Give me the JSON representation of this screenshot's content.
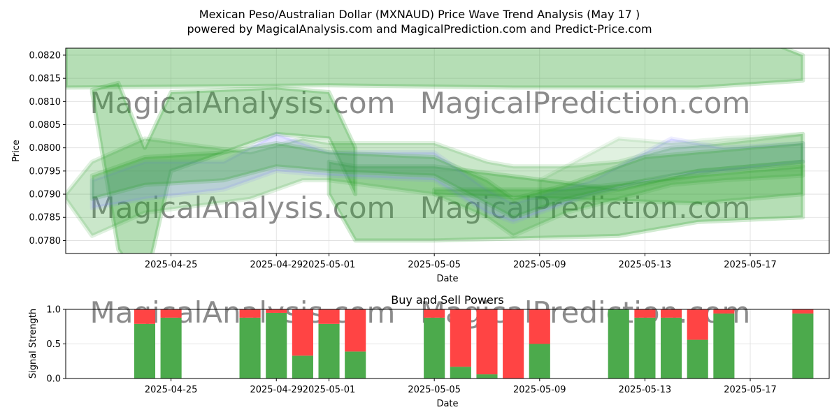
{
  "title_line1": "Mexican Peso/Australian Dollar (MXNAUD) Price Wave Trend Analysis (May 17 )",
  "title_line2": "powered by MagicalAnalysis.com and MagicalPrediction.com and Predict-Price.com",
  "watermarks": [
    "MagicalAnalysis.com",
    "MagicalPrediction.com"
  ],
  "colors": {
    "band": "#2ca02c",
    "band_alt": "#8080ff",
    "buy": "#4caa4c",
    "sell": "#ff4444",
    "grid": "#dddddd"
  },
  "chart_data": [
    {
      "type": "area",
      "title": "",
      "xlabel": "Date",
      "ylabel": "Price",
      "x_ticks": [
        "2025-04-25",
        "2025-04-29",
        "2025-05-01",
        "2025-05-05",
        "2025-05-09",
        "2025-05-13",
        "2025-05-17"
      ],
      "y_ticks": [
        "0.0780",
        "0.0785",
        "0.0790",
        "0.0795",
        "0.0800",
        "0.0805",
        "0.0810",
        "0.0815",
        "0.0820"
      ],
      "xlim": [
        "2025-04-21",
        "2025-05-20"
      ],
      "ylim": [
        0.07772,
        0.08215
      ],
      "grid": true,
      "bands": [
        {
          "x": [
            "2025-04-21",
            "2025-05-01",
            "2025-05-08",
            "2025-05-15",
            "2025-05-19"
          ],
          "lower": [
            0.0813,
            0.08135,
            0.0813,
            0.0813,
            0.08145
          ],
          "upper": [
            0.0829,
            0.0829,
            0.0829,
            0.0829,
            0.082
          ],
          "alpha": 0.35,
          "color": "band"
        },
        {
          "x": [
            "2025-04-22",
            "2025-04-23",
            "2025-04-24",
            "2025-04-25",
            "2025-04-29",
            "2025-05-01",
            "2025-05-02"
          ],
          "lower": [
            0.0812,
            0.0778,
            0.077,
            0.0795,
            0.0803,
            0.0802,
            0.079
          ],
          "upper": [
            0.08125,
            0.0814,
            0.08,
            0.0812,
            0.0813,
            0.0812,
            0.08
          ],
          "alpha": 0.35,
          "color": "band"
        },
        {
          "x": [
            "2025-05-01",
            "2025-05-02",
            "2025-05-05",
            "2025-05-12",
            "2025-05-15",
            "2025-05-19"
          ],
          "lower": [
            0.079,
            0.078,
            0.078,
            0.0781,
            0.0784,
            0.0785
          ],
          "upper": [
            0.0797,
            0.0796,
            0.0796,
            0.0791,
            0.0795,
            0.0797
          ],
          "alpha": 0.35,
          "color": "band"
        },
        {
          "x": [
            "2025-04-21",
            "2025-04-22",
            "2025-04-24",
            "2025-04-28",
            "2025-04-30",
            "2025-05-01",
            "2025-05-05",
            "2025-05-07",
            "2025-05-08",
            "2025-05-10",
            "2025-05-12",
            "2025-05-14",
            "2025-05-16",
            "2025-05-19"
          ],
          "lower": [
            0.0789,
            0.0781,
            0.0786,
            0.0789,
            0.0793,
            0.0793,
            0.079,
            0.0785,
            0.0781,
            0.0786,
            0.0789,
            0.0792,
            0.0793,
            0.0794
          ],
          "upper": [
            0.079,
            0.0797,
            0.0802,
            0.0799,
            0.0802,
            0.0801,
            0.0801,
            0.0797,
            0.0796,
            0.0796,
            0.0797,
            0.08,
            0.0801,
            0.0803
          ],
          "alpha": 0.25,
          "color": "band"
        },
        {
          "x": [
            "2025-04-22",
            "2025-04-24",
            "2025-04-27",
            "2025-04-29",
            "2025-05-01",
            "2025-05-05",
            "2025-05-07",
            "2025-05-08",
            "2025-05-11",
            "2025-05-14",
            "2025-05-16",
            "2025-05-19"
          ],
          "lower": [
            0.0787,
            0.0789,
            0.0791,
            0.0795,
            0.0794,
            0.0793,
            0.0786,
            0.0784,
            0.079,
            0.0794,
            0.0795,
            0.0797
          ],
          "upper": [
            0.0793,
            0.0797,
            0.0797,
            0.0803,
            0.0799,
            0.0799,
            0.0791,
            0.0788,
            0.0793,
            0.0802,
            0.08,
            0.0801
          ],
          "alpha": 0.22,
          "color": "band_alt"
        },
        {
          "x": [
            "2025-04-22",
            "2025-04-24",
            "2025-04-27",
            "2025-04-29",
            "2025-05-01",
            "2025-05-05",
            "2025-05-07",
            "2025-05-08",
            "2025-05-10",
            "2025-05-13",
            "2025-05-15",
            "2025-05-19"
          ],
          "lower": [
            0.0789,
            0.0792,
            0.0793,
            0.0796,
            0.0795,
            0.0794,
            0.0788,
            0.0785,
            0.0789,
            0.0793,
            0.0795,
            0.0797
          ],
          "upper": [
            0.0794,
            0.0798,
            0.0799,
            0.0801,
            0.0799,
            0.0798,
            0.0793,
            0.0789,
            0.0792,
            0.0798,
            0.0799,
            0.0801
          ],
          "alpha": 0.3,
          "color": "band"
        },
        {
          "x": [
            "2025-05-09",
            "2025-05-12",
            "2025-05-14",
            "2025-05-16",
            "2025-05-19"
          ],
          "lower": [
            0.0787,
            0.0791,
            0.0793,
            0.0795,
            0.0796
          ],
          "upper": [
            0.0793,
            0.0802,
            0.0801,
            0.0802,
            0.0803
          ],
          "alpha": 0.15,
          "color": "band"
        },
        {
          "x": [
            "2025-05-05",
            "2025-05-10",
            "2025-05-15",
            "2025-05-19"
          ],
          "lower": [
            0.079,
            0.0789,
            0.0788,
            0.079
          ],
          "upper": [
            0.0791,
            0.0791,
            0.0794,
            0.0796
          ],
          "alpha": 0.3,
          "color": "band"
        }
      ]
    },
    {
      "type": "bar",
      "title": "Buy and Sell Powers",
      "xlabel": "Date",
      "ylabel": "Signal Strength",
      "x_ticks": [
        "2025-04-25",
        "2025-04-29",
        "2025-05-01",
        "2025-05-05",
        "2025-05-09",
        "2025-05-13",
        "2025-05-17"
      ],
      "y_ticks": [
        "0.0",
        "0.5",
        "1.0"
      ],
      "xlim": [
        "2025-04-21",
        "2025-05-20"
      ],
      "ylim": [
        0,
        1
      ],
      "grid": true,
      "categories": [
        "2025-04-24",
        "2025-04-25",
        "2025-04-28",
        "2025-04-29",
        "2025-04-30",
        "2025-05-01",
        "2025-05-02",
        "2025-05-05",
        "2025-05-06",
        "2025-05-07",
        "2025-05-08",
        "2025-05-09",
        "2025-05-12",
        "2025-05-13",
        "2025-05-14",
        "2025-05-15",
        "2025-05-16",
        "2025-05-19"
      ],
      "series": [
        {
          "values": [
            0.79,
            0.88,
            0.88,
            0.95,
            0.33,
            0.79,
            0.39,
            0.88,
            0.17,
            0.06,
            0.0,
            0.5,
            1.0,
            0.88,
            0.88,
            0.56,
            0.94,
            0.94
          ]
        },
        {
          "values": [
            0.21,
            0.12,
            0.12,
            0.05,
            0.67,
            0.21,
            0.61,
            0.12,
            0.83,
            0.94,
            1.0,
            0.5,
            0.0,
            0.12,
            0.12,
            0.44,
            0.06,
            0.06
          ]
        }
      ]
    }
  ]
}
